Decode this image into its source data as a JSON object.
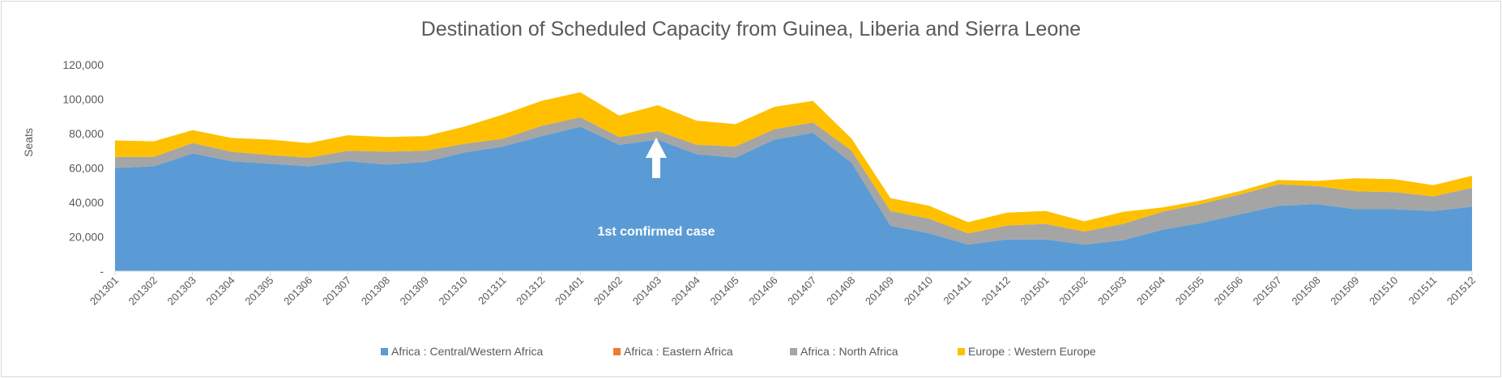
{
  "chart_data": {
    "type": "area",
    "stacked": true,
    "title": "Destination of Scheduled Capacity from Guinea, Liberia and Sierra Leone",
    "xlabel": "",
    "ylabel": "Seats",
    "ylim": [
      0,
      120000
    ],
    "yticks": [
      0,
      20000,
      40000,
      60000,
      80000,
      100000,
      120000
    ],
    "ytick_labels": [
      "-",
      "20,000",
      "40,000",
      "60,000",
      "80,000",
      "100,000",
      "120,000"
    ],
    "grid": false,
    "legend_position": "bottom",
    "categories": [
      "201301",
      "201302",
      "201303",
      "201304",
      "201305",
      "201306",
      "201307",
      "201308",
      "201309",
      "201310",
      "201311",
      "201312",
      "201401",
      "201402",
      "201403",
      "201404",
      "201405",
      "201406",
      "201407",
      "201408",
      "201409",
      "201410",
      "201411",
      "201412",
      "201501",
      "201502",
      "201503",
      "201504",
      "201505",
      "201506",
      "201507",
      "201508",
      "201509",
      "201510",
      "201511",
      "201512"
    ],
    "series": [
      {
        "name": "Africa : Central/Western Africa",
        "color": "#5b9bd5",
        "values": [
          60000,
          61000,
          68500,
          64000,
          62500,
          61000,
          64000,
          62000,
          63500,
          69000,
          72500,
          78500,
          84000,
          73500,
          76500,
          68000,
          66000,
          76500,
          80500,
          63000,
          26500,
          22000,
          15500,
          18500,
          18500,
          15500,
          18000,
          24000,
          28000,
          33000,
          38000,
          39000,
          36000,
          36000,
          35000,
          37500
        ]
      },
      {
        "name": "Africa : Eastern Africa",
        "color": "#ed7d31",
        "values": [
          0,
          0,
          0,
          0,
          0,
          0,
          0,
          0,
          0,
          0,
          0,
          0,
          0,
          0,
          0,
          0,
          0,
          0,
          0,
          0,
          0,
          0,
          0,
          0,
          0,
          0,
          0,
          0,
          0,
          0,
          0,
          0,
          0,
          0,
          0,
          0
        ]
      },
      {
        "name": "Africa : North Africa",
        "color": "#a5a5a5",
        "values": [
          6500,
          5500,
          6000,
          5500,
          5000,
          5000,
          6000,
          7500,
          6500,
          5000,
          4500,
          6000,
          5500,
          4500,
          5000,
          5500,
          6500,
          6000,
          6000,
          7000,
          8500,
          8500,
          6500,
          8000,
          9000,
          7500,
          9500,
          10500,
          11000,
          11500,
          12500,
          10500,
          10500,
          10000,
          8500,
          11000
        ]
      },
      {
        "name": "Europe : Western Europe",
        "color": "#ffc000",
        "values": [
          9500,
          9000,
          7500,
          8000,
          9000,
          8500,
          9000,
          8500,
          8500,
          10000,
          14000,
          14500,
          14500,
          12500,
          15000,
          14000,
          13000,
          13000,
          12500,
          7000,
          7500,
          7500,
          6500,
          7500,
          7500,
          6000,
          7000,
          2500,
          2000,
          2000,
          2500,
          3000,
          7500,
          7500,
          6500,
          7000
        ]
      }
    ],
    "annotations": [
      {
        "text": "1st confirmed case",
        "category": "201403",
        "arrow": "up"
      }
    ]
  }
}
